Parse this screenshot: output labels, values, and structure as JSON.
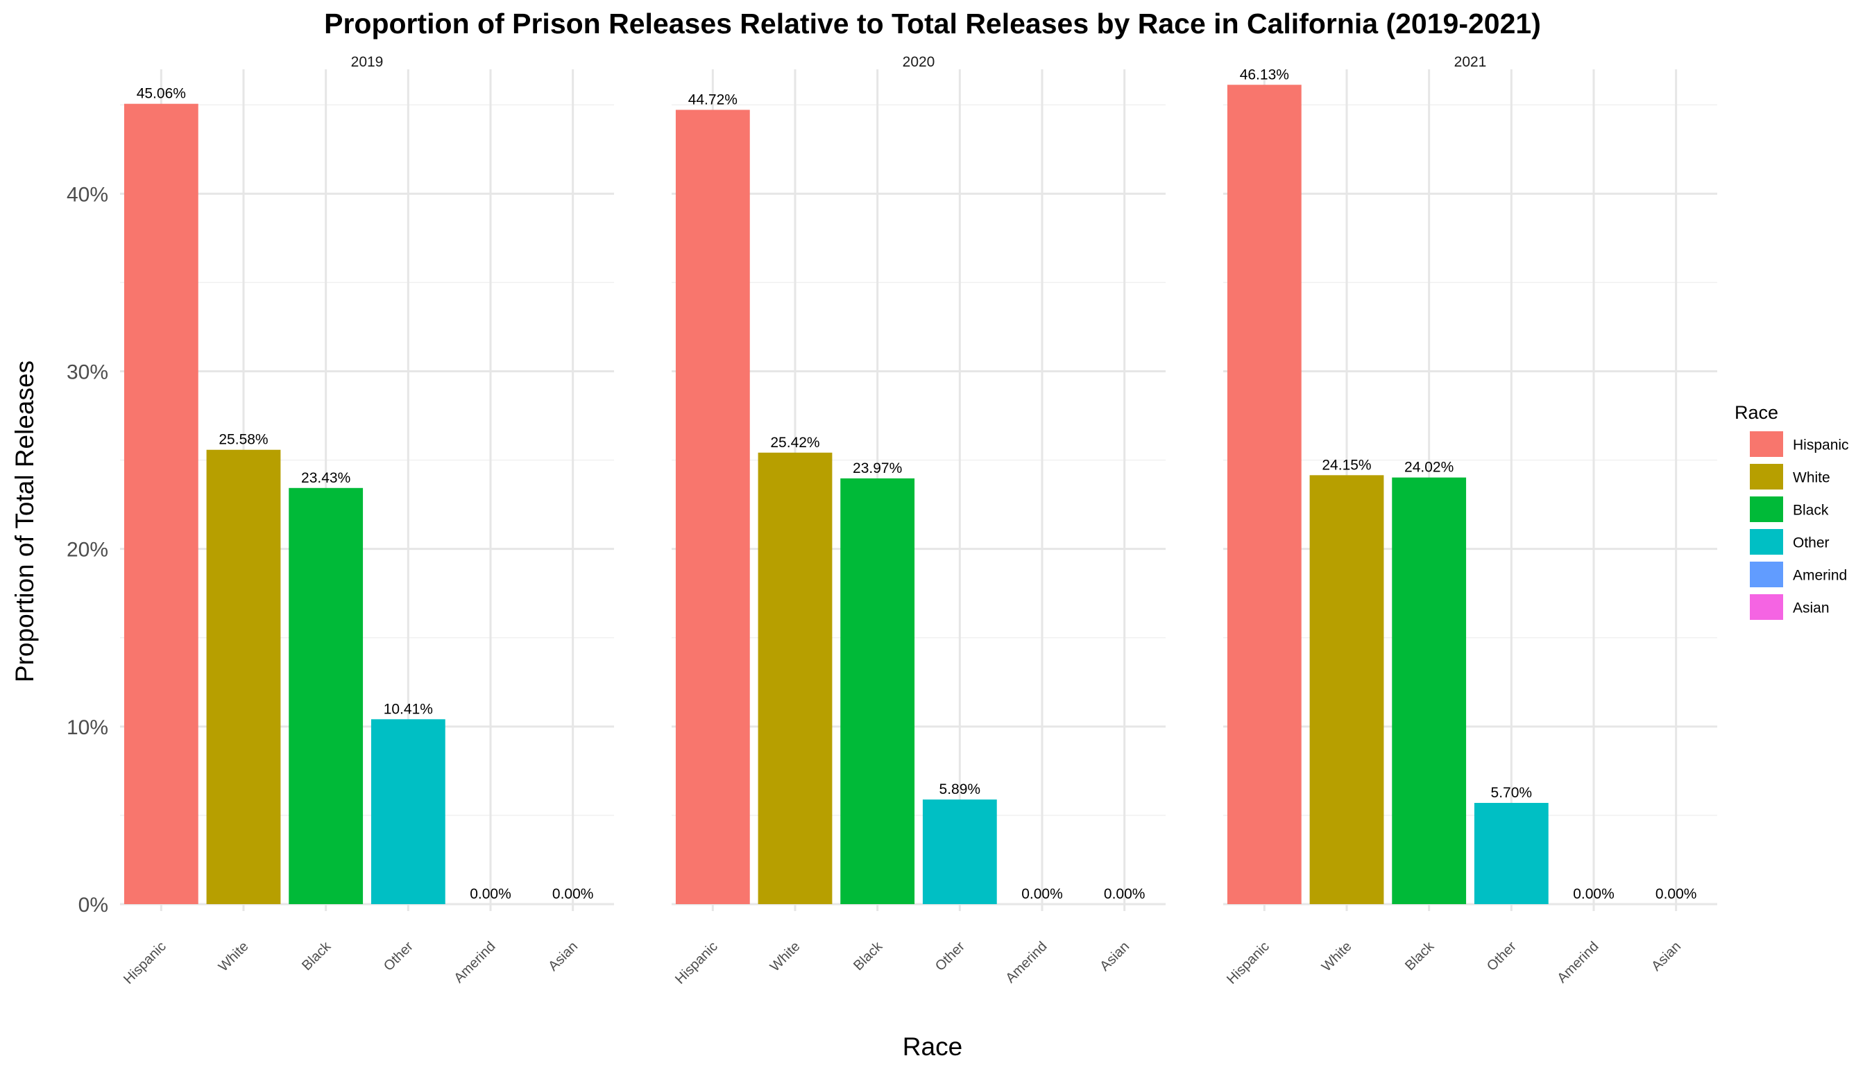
{
  "chart_data": {
    "type": "bar",
    "title": "Proportion of Prison Releases Relative to Total Releases by Race in California (2019-2021)",
    "xlabel": "Race",
    "ylabel": "Proportion of Total Releases",
    "ylim": [
      0,
      0.47
    ],
    "y_ticks": [
      0,
      0.1,
      0.2,
      0.3,
      0.4
    ],
    "y_tick_labels": [
      "0%",
      "10%",
      "20%",
      "30%",
      "40%"
    ],
    "grid": true,
    "categories": [
      "Hispanic",
      "White",
      "Black",
      "Other",
      "Amerind",
      "Asian"
    ],
    "colors": {
      "Hispanic": "#F8766D",
      "White": "#B79F00",
      "Black": "#00BA38",
      "Other": "#00BFC4",
      "Amerind": "#619CFF",
      "Asian": "#F564E3"
    },
    "panels": [
      {
        "facet": "2019",
        "values": [
          0.4506,
          0.2558,
          0.2343,
          0.1041,
          0.0,
          0.0
        ],
        "labels": [
          "45.06%",
          "25.58%",
          "23.43%",
          "10.41%",
          "0.00%",
          "0.00%"
        ]
      },
      {
        "facet": "2020",
        "values": [
          0.4472,
          0.2542,
          0.2397,
          0.0589,
          0.0,
          0.0
        ],
        "labels": [
          "44.72%",
          "25.42%",
          "23.97%",
          "5.89%",
          "0.00%",
          "0.00%"
        ]
      },
      {
        "facet": "2021",
        "values": [
          0.4613,
          0.2415,
          0.2402,
          0.057,
          0.0,
          0.0
        ],
        "labels": [
          "46.13%",
          "24.15%",
          "24.02%",
          "5.70%",
          "0.00%",
          "0.00%"
        ]
      }
    ],
    "legend": {
      "title": "Race",
      "position": "right",
      "entries": [
        "Hispanic",
        "White",
        "Black",
        "Other",
        "Amerind",
        "Asian"
      ]
    }
  }
}
